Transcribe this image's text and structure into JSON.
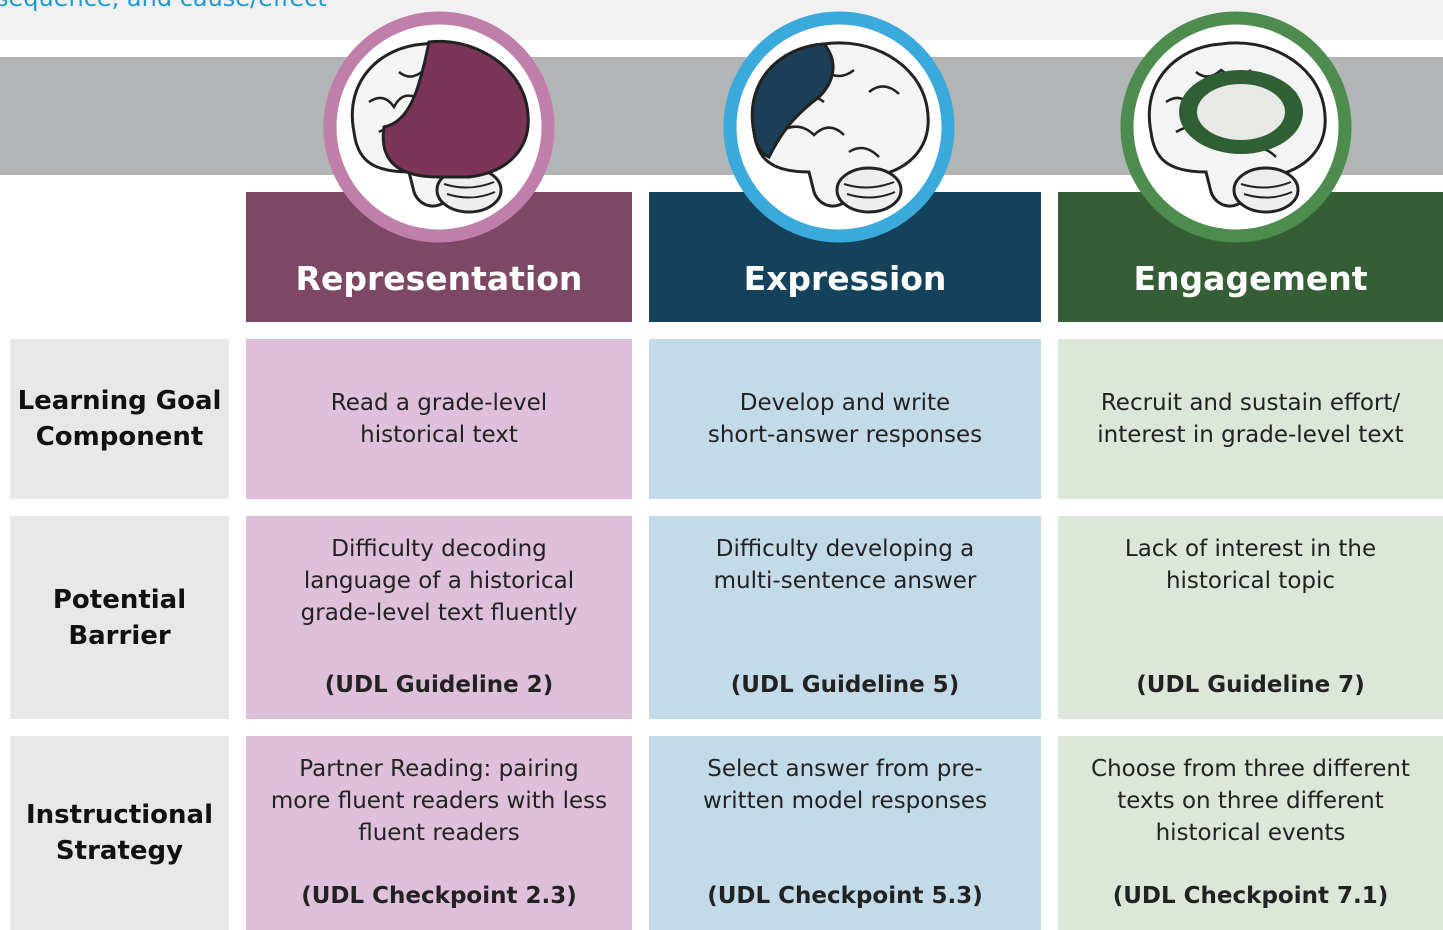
{
  "header": {
    "caption": "sequence, and cause/effect"
  },
  "columns": [
    {
      "title": "Representation"
    },
    {
      "title": "Expression"
    },
    {
      "title": "Engagement"
    }
  ],
  "rows": [
    {
      "label": [
        "Learning Goal",
        "Component"
      ],
      "cells": [
        {
          "lines": [
            "Read a grade-level",
            "historical text"
          ]
        },
        {
          "lines": [
            "Develop and write",
            "short-answer responses"
          ]
        },
        {
          "lines": [
            "Recruit and sustain effort/",
            "interest in grade-level text"
          ]
        }
      ]
    },
    {
      "label": [
        "Potential",
        "Barrier"
      ],
      "cells": [
        {
          "lines": [
            "Difficulty decoding",
            "language of a historical",
            "grade-level text fluently"
          ],
          "note": "(UDL Guideline 2)"
        },
        {
          "lines": [
            "Difficulty developing a",
            "multi-sentence answer"
          ],
          "note": "(UDL Guideline 5)"
        },
        {
          "lines": [
            "Lack of interest in the",
            "historical topic"
          ],
          "note": "(UDL Guideline 7)"
        }
      ]
    },
    {
      "label": [
        "Instructional",
        "Strategy"
      ],
      "cells": [
        {
          "lines": [
            "Partner Reading: pairing",
            "more fluent readers with less",
            "fluent readers"
          ],
          "note": "(UDL Checkpoint 2.3)"
        },
        {
          "lines": [
            "Select answer from pre-",
            "written model responses"
          ],
          "note": "(UDL Checkpoint 5.3)"
        },
        {
          "lines": [
            "Choose from three different",
            "texts on three different",
            "historical events"
          ],
          "note": "(UDL Checkpoint 7.1)"
        }
      ]
    }
  ]
}
